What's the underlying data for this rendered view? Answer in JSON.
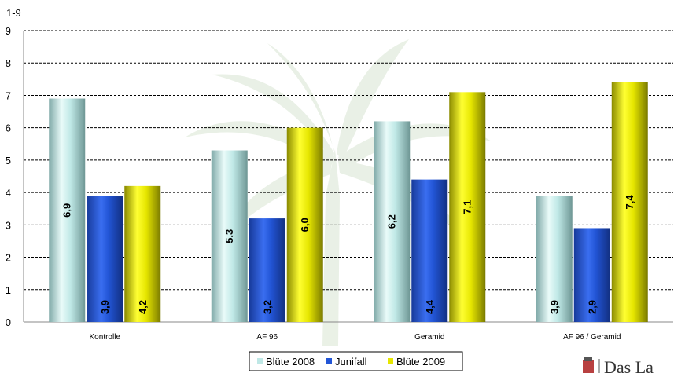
{
  "chart_data": {
    "type": "bar",
    "unit_label": "1-9",
    "ylim": [
      0,
      9
    ],
    "yticks": [
      0,
      1,
      2,
      3,
      4,
      5,
      6,
      7,
      8,
      9
    ],
    "grid": "horizontal-dashed",
    "categories": [
      "Kontrolle",
      "AF 96",
      "Geramid",
      "AF 96 / Geramid"
    ],
    "series": [
      {
        "name": "Blüte 2008",
        "values": [
          6.9,
          5.3,
          6.2,
          3.9
        ],
        "labels": [
          "6,9",
          "5,3",
          "6,2",
          "3,9"
        ],
        "color": "#bfe8e6"
      },
      {
        "name": "Junifall",
        "values": [
          3.9,
          3.2,
          4.4,
          2.9
        ],
        "labels": [
          "3,9",
          "3,2",
          "4,4",
          "2,9"
        ],
        "color": "#2255d6"
      },
      {
        "name": "Blüte 2009",
        "values": [
          4.2,
          6.0,
          7.1,
          7.4
        ],
        "labels": [
          "4,2",
          "6,0",
          "7,1",
          "7,4"
        ],
        "color": "#e6e600"
      }
    ],
    "legend_position": "bottom-center"
  },
  "footer": {
    "text": "Das La"
  }
}
